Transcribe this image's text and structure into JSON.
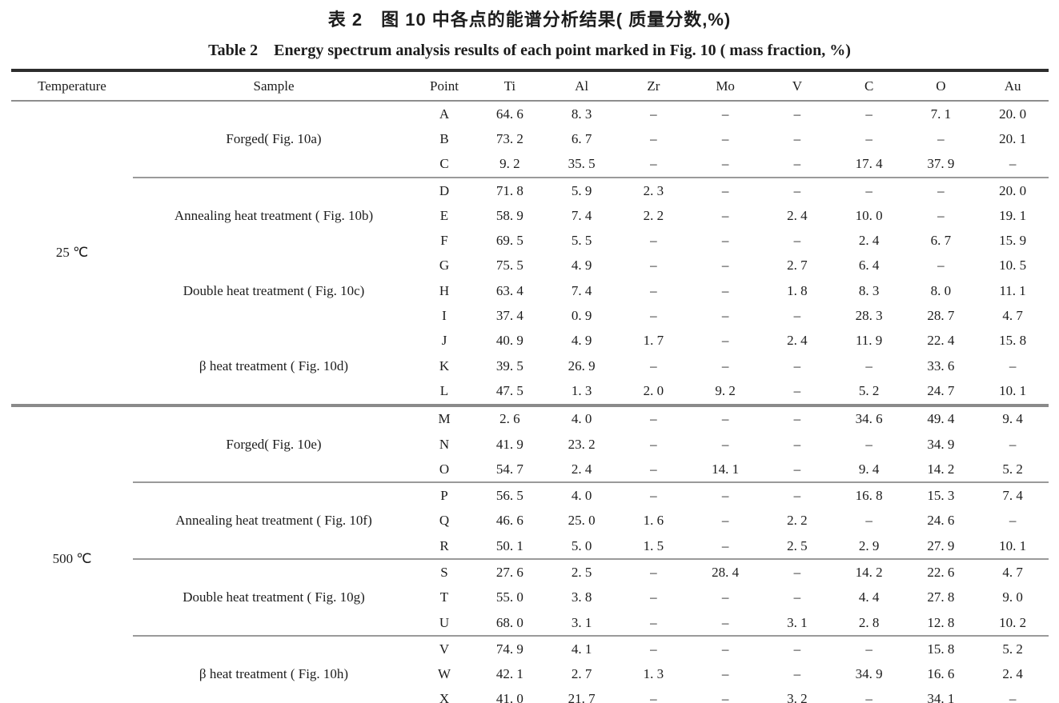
{
  "page": {
    "title_zh": "表 2　图 10 中各点的能谱分析结果( 质量分数,%)",
    "title_en": "Table 2　Energy spectrum analysis results of each point marked in Fig. 10 ( mass fraction, %)"
  },
  "table": {
    "columns": [
      "Temperature",
      "Sample",
      "Point",
      "Ti",
      "Al",
      "Zr",
      "Mo",
      "V",
      "C",
      "O",
      "Au"
    ],
    "missing_value_symbol": "–",
    "sections": [
      {
        "temperature": "25 ℃",
        "groups": [
          {
            "sample": "Forged( Fig. 10a)",
            "divider_above": false,
            "rows": [
              {
                "point": "A",
                "values": [
                  "64. 6",
                  "8. 3",
                  "–",
                  "–",
                  "–",
                  "–",
                  "7. 1",
                  "20. 0"
                ]
              },
              {
                "point": "B",
                "values": [
                  "73. 2",
                  "6. 7",
                  "–",
                  "–",
                  "–",
                  "–",
                  "–",
                  "20. 1"
                ]
              },
              {
                "point": "C",
                "values": [
                  "9. 2",
                  "35. 5",
                  "–",
                  "–",
                  "–",
                  "17. 4",
                  "37. 9",
                  "–"
                ]
              }
            ]
          },
          {
            "sample": "Annealing heat treatment ( Fig. 10b)",
            "divider_above": true,
            "rows": [
              {
                "point": "D",
                "values": [
                  "71. 8",
                  "5. 9",
                  "2. 3",
                  "–",
                  "–",
                  "–",
                  "–",
                  "20. 0"
                ]
              },
              {
                "point": "E",
                "values": [
                  "58. 9",
                  "7. 4",
                  "2. 2",
                  "–",
                  "2. 4",
                  "10. 0",
                  "–",
                  "19. 1"
                ]
              },
              {
                "point": "F",
                "values": [
                  "69. 5",
                  "5. 5",
                  "–",
                  "–",
                  "–",
                  "2. 4",
                  "6. 7",
                  "15. 9"
                ]
              }
            ]
          },
          {
            "sample": "Double heat treatment ( Fig. 10c)",
            "divider_above": false,
            "rows": [
              {
                "point": "G",
                "values": [
                  "75. 5",
                  "4. 9",
                  "–",
                  "–",
                  "2. 7",
                  "6. 4",
                  "–",
                  "10. 5"
                ]
              },
              {
                "point": "H",
                "values": [
                  "63. 4",
                  "7. 4",
                  "–",
                  "–",
                  "1. 8",
                  "8. 3",
                  "8. 0",
                  "11. 1"
                ]
              },
              {
                "point": "I",
                "values": [
                  "37. 4",
                  "0. 9",
                  "–",
                  "–",
                  "–",
                  "28. 3",
                  "28. 7",
                  "4. 7"
                ]
              }
            ]
          },
          {
            "sample": "β heat treatment ( Fig. 10d)",
            "divider_above": false,
            "rows": [
              {
                "point": "J",
                "values": [
                  "40. 9",
                  "4. 9",
                  "1. 7",
                  "–",
                  "2. 4",
                  "11. 9",
                  "22. 4",
                  "15. 8"
                ]
              },
              {
                "point": "K",
                "values": [
                  "39. 5",
                  "26. 9",
                  "–",
                  "–",
                  "–",
                  "–",
                  "33. 6",
                  "–"
                ]
              },
              {
                "point": "L",
                "values": [
                  "47. 5",
                  "1. 3",
                  "2. 0",
                  "9. 2",
                  "–",
                  "5. 2",
                  "24. 7",
                  "10. 1"
                ]
              }
            ]
          }
        ]
      },
      {
        "temperature": "500 ℃",
        "groups": [
          {
            "sample": "Forged( Fig. 10e)",
            "divider_above": false,
            "rows": [
              {
                "point": "M",
                "values": [
                  "2. 6",
                  "4. 0",
                  "–",
                  "–",
                  "–",
                  "34. 6",
                  "49. 4",
                  "9. 4"
                ]
              },
              {
                "point": "N",
                "values": [
                  "41. 9",
                  "23. 2",
                  "–",
                  "–",
                  "–",
                  "–",
                  "34. 9",
                  "–"
                ]
              },
              {
                "point": "O",
                "values": [
                  "54. 7",
                  "2. 4",
                  "–",
                  "14. 1",
                  "–",
                  "9. 4",
                  "14. 2",
                  "5. 2"
                ]
              }
            ]
          },
          {
            "sample": "Annealing heat treatment ( Fig. 10f)",
            "divider_above": true,
            "rows": [
              {
                "point": "P",
                "values": [
                  "56. 5",
                  "4. 0",
                  "–",
                  "–",
                  "–",
                  "16. 8",
                  "15. 3",
                  "7. 4"
                ]
              },
              {
                "point": "Q",
                "values": [
                  "46. 6",
                  "25. 0",
                  "1. 6",
                  "–",
                  "2. 2",
                  "–",
                  "24. 6",
                  "–"
                ]
              },
              {
                "point": "R",
                "values": [
                  "50. 1",
                  "5. 0",
                  "1. 5",
                  "–",
                  "2. 5",
                  "2. 9",
                  "27. 9",
                  "10. 1"
                ]
              }
            ]
          },
          {
            "sample": "Double heat treatment ( Fig. 10g)",
            "divider_above": true,
            "rows": [
              {
                "point": "S",
                "values": [
                  "27. 6",
                  "2. 5",
                  "–",
                  "28. 4",
                  "–",
                  "14. 2",
                  "22. 6",
                  "4. 7"
                ]
              },
              {
                "point": "T",
                "values": [
                  "55. 0",
                  "3. 8",
                  "–",
                  "–",
                  "–",
                  "4. 4",
                  "27. 8",
                  "9. 0"
                ]
              },
              {
                "point": "U",
                "values": [
                  "68. 0",
                  "3. 1",
                  "–",
                  "–",
                  "3. 1",
                  "2. 8",
                  "12. 8",
                  "10. 2"
                ]
              }
            ]
          },
          {
            "sample": "β heat treatment ( Fig. 10h)",
            "divider_above": true,
            "rows": [
              {
                "point": "V",
                "values": [
                  "74. 9",
                  "4. 1",
                  "–",
                  "–",
                  "–",
                  "–",
                  "15. 8",
                  "5. 2"
                ]
              },
              {
                "point": "W",
                "values": [
                  "42. 1",
                  "2. 7",
                  "1. 3",
                  "–",
                  "–",
                  "34. 9",
                  "16. 6",
                  "2. 4"
                ]
              },
              {
                "point": "X",
                "values": [
                  "41. 0",
                  "21. 7",
                  "–",
                  "–",
                  "3. 2",
                  "–",
                  "34. 1",
                  "–"
                ]
              }
            ]
          }
        ]
      }
    ]
  }
}
